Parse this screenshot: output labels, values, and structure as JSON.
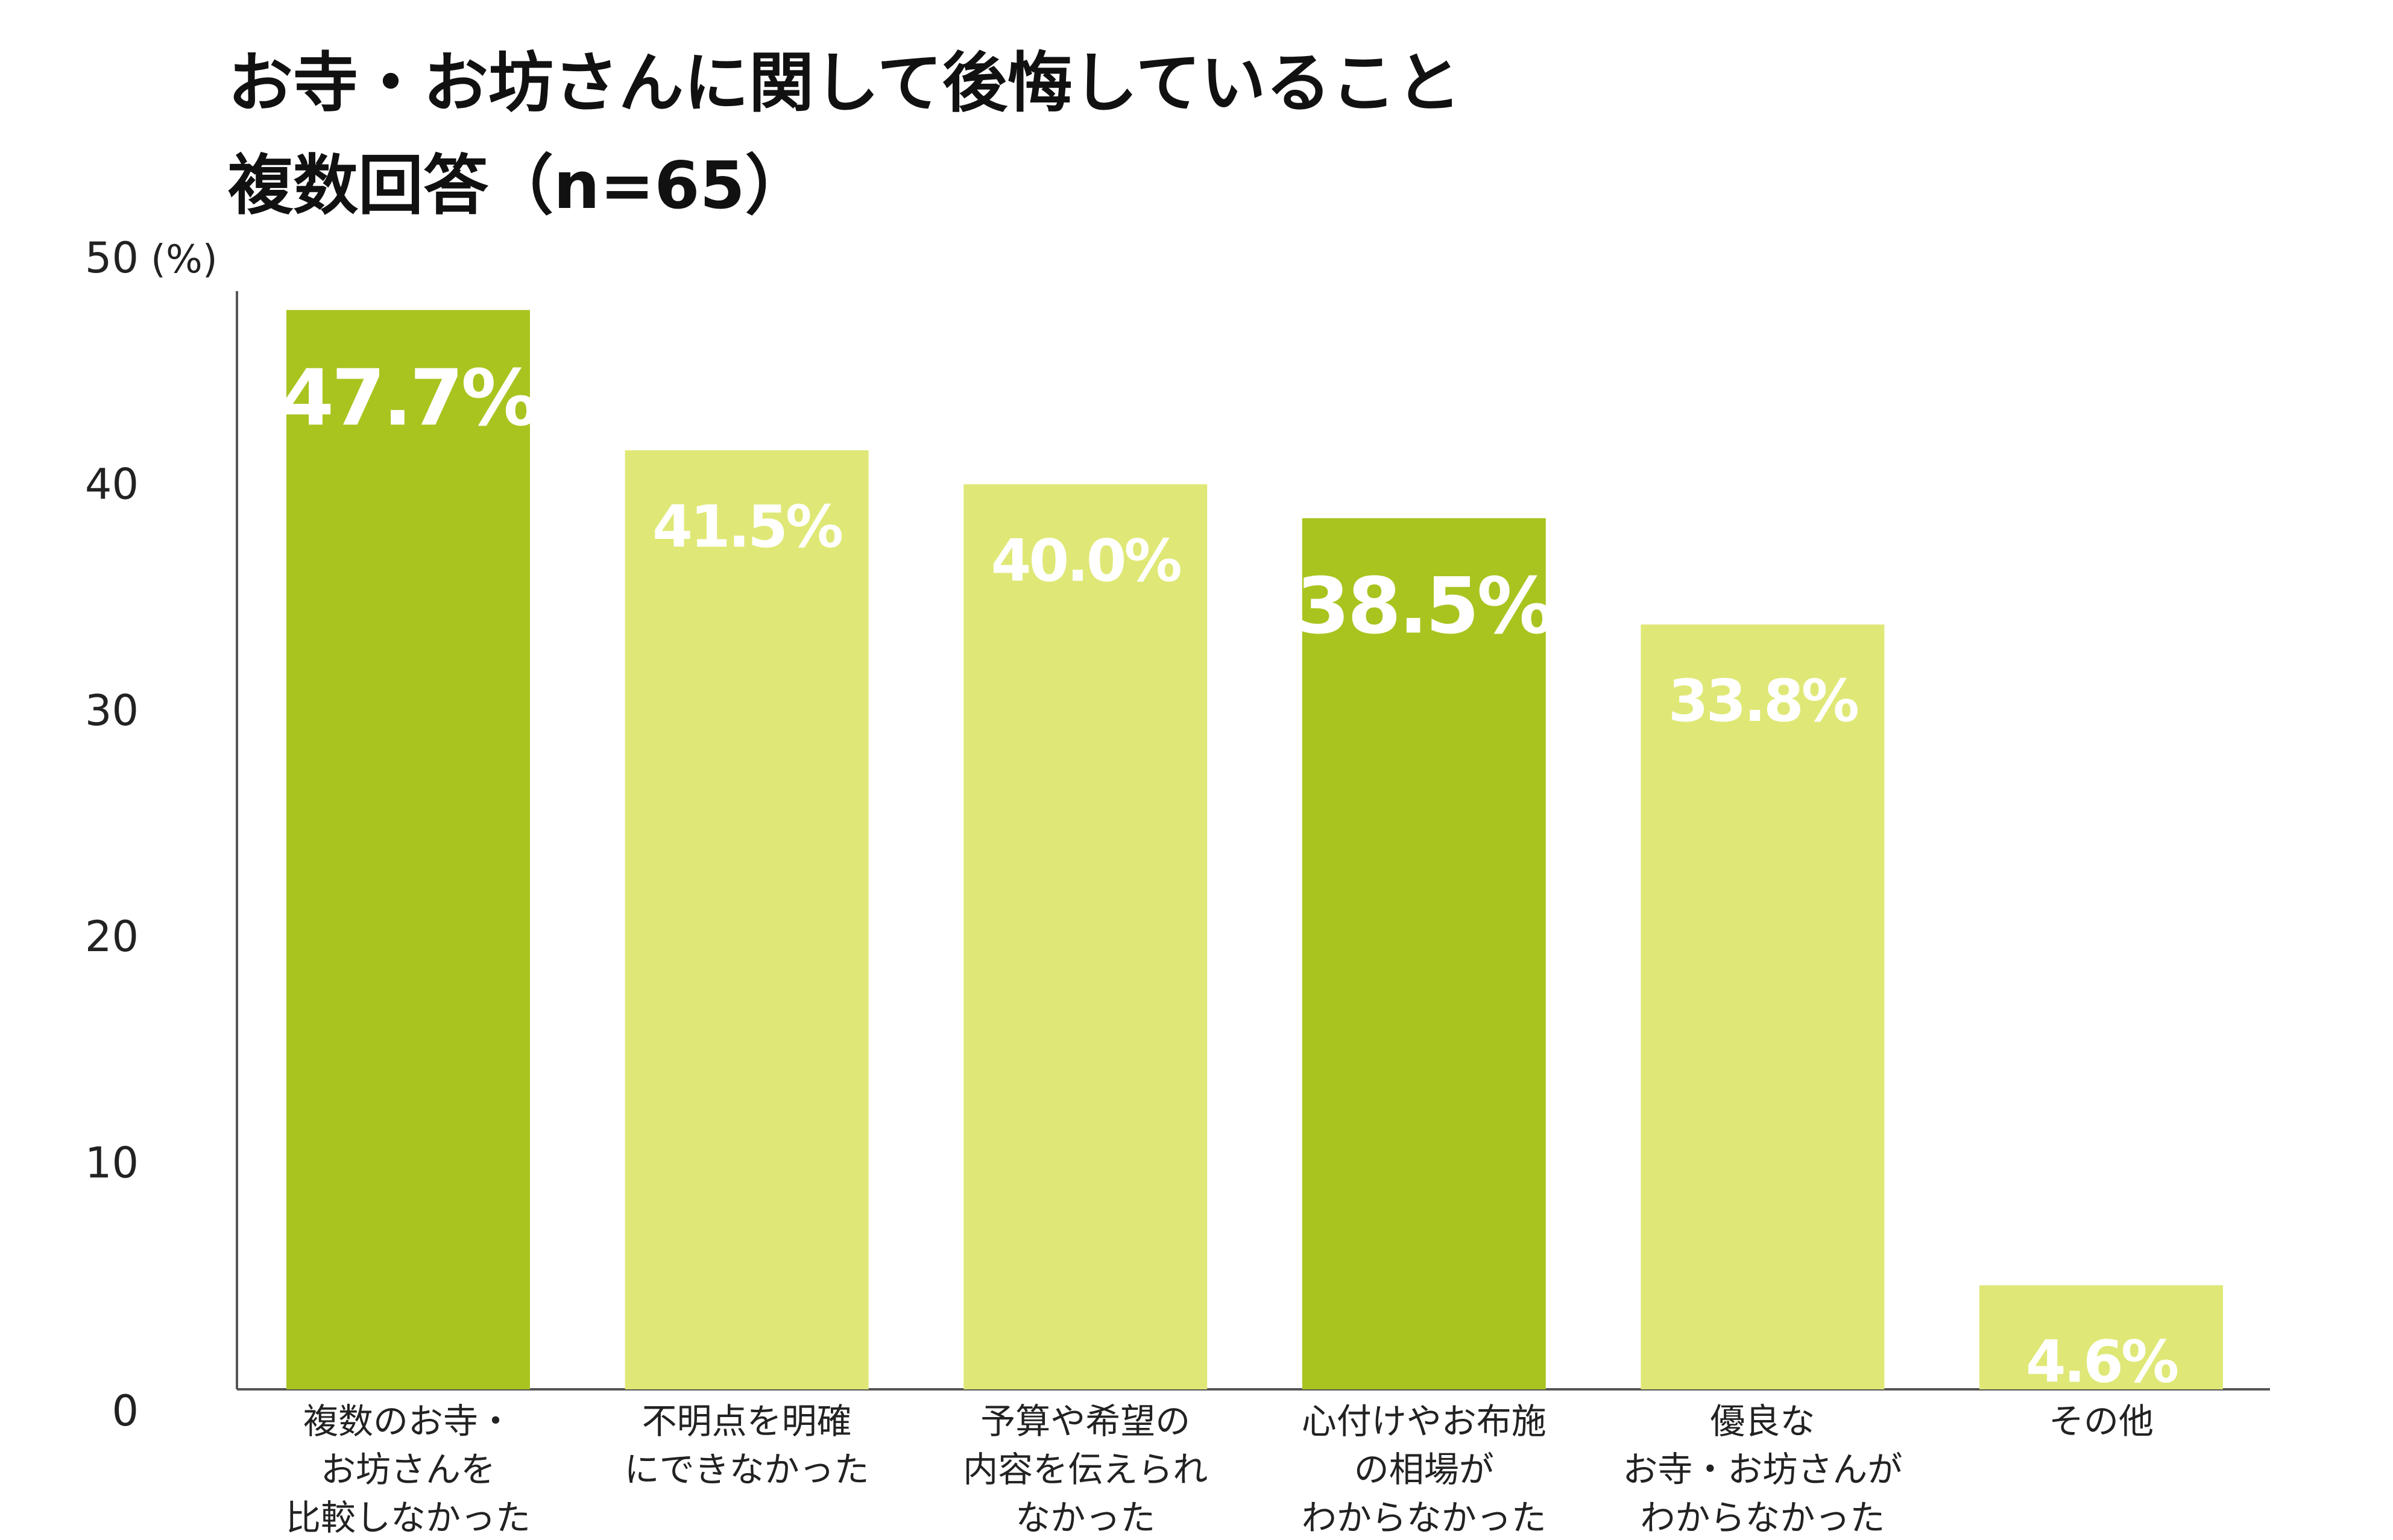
{
  "chart_data": {
    "type": "bar",
    "title_lines": [
      "お寺・お坊さんに関して後悔していること",
      "複数回答（n=65）"
    ],
    "unit_label": "(%)",
    "ylim": [
      0,
      50
    ],
    "yticks": [
      0,
      10,
      20,
      30,
      40,
      50
    ],
    "grid": false,
    "categories": [
      [
        "複数のお寺・",
        "お坊さんを",
        "比較しなかった"
      ],
      [
        "不明点を明確",
        "にできなかった"
      ],
      [
        "予算や希望の",
        "内容を伝えられ",
        "なかった"
      ],
      [
        "心付けやお布施",
        "の相場が",
        "わからなかった"
      ],
      [
        "優良な",
        "お寺・お坊さんが",
        "わからなかった"
      ],
      [
        "その他"
      ]
    ],
    "values": [
      47.7,
      41.5,
      40.0,
      38.5,
      33.8,
      4.6
    ],
    "value_labels": [
      "47.7%",
      "41.5%",
      "40.0%",
      "38.5%",
      "33.8%",
      "4.6%"
    ],
    "highlighted": [
      true,
      false,
      false,
      true,
      false,
      false
    ],
    "colors": {
      "highlight": "#a9c41f",
      "normal": "#dfe876",
      "axis": "#555555",
      "label": "#ffffff"
    }
  }
}
